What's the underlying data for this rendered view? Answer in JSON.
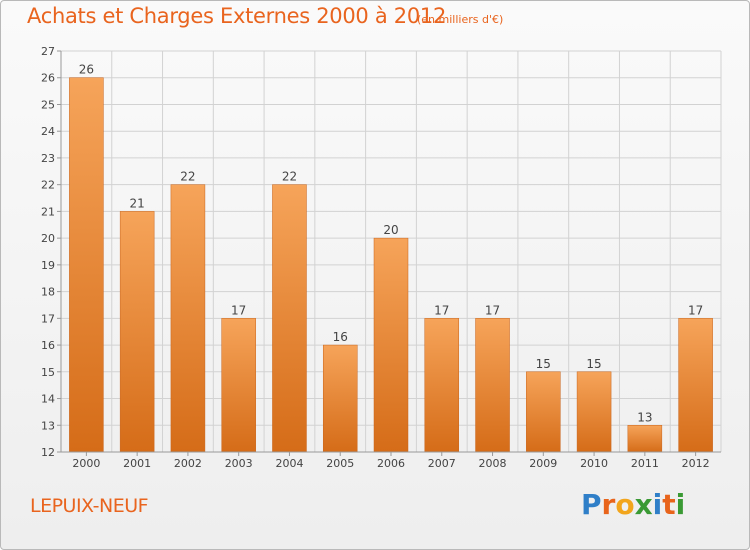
{
  "header": {
    "title": "Achats et Charges Externes 2000 à 2012",
    "subtitle": "(en milliers d'€)"
  },
  "footer": {
    "place": "LEPUIX-NEUF",
    "brand": "Proxiti",
    "brand_letters": [
      {
        "char": "P",
        "color": "#2f7fc8"
      },
      {
        "char": "r",
        "color": "#e8641b"
      },
      {
        "char": "o",
        "color": "#f2a51c"
      },
      {
        "char": "x",
        "color": "#3a9a34"
      },
      {
        "char": "i",
        "color": "#2f7fc8"
      },
      {
        "char": "t",
        "color": "#e8641b"
      },
      {
        "char": "i",
        "color": "#3a9a34"
      }
    ]
  },
  "colors": {
    "accent": "#e9641e",
    "bar_light": "#f6a45a",
    "bar_dark": "#d56c18",
    "grid": "#d2d2d2"
  },
  "chart_data": {
    "type": "bar",
    "title": "Achats et Charges Externes 2000 à 2012",
    "subtitle": "(en milliers d'€)",
    "xlabel": "",
    "ylabel": "",
    "categories": [
      "2000",
      "2001",
      "2002",
      "2003",
      "2004",
      "2005",
      "2006",
      "2007",
      "2008",
      "2009",
      "2010",
      "2011",
      "2012"
    ],
    "values": [
      26,
      21,
      22,
      17,
      22,
      16,
      20,
      17,
      17,
      15,
      15,
      13,
      17
    ],
    "ylim": [
      12,
      27
    ],
    "yticks": [
      12,
      13,
      14,
      15,
      16,
      17,
      18,
      19,
      20,
      21,
      22,
      23,
      24,
      25,
      26,
      27
    ],
    "grid": true,
    "data_labels": true
  }
}
